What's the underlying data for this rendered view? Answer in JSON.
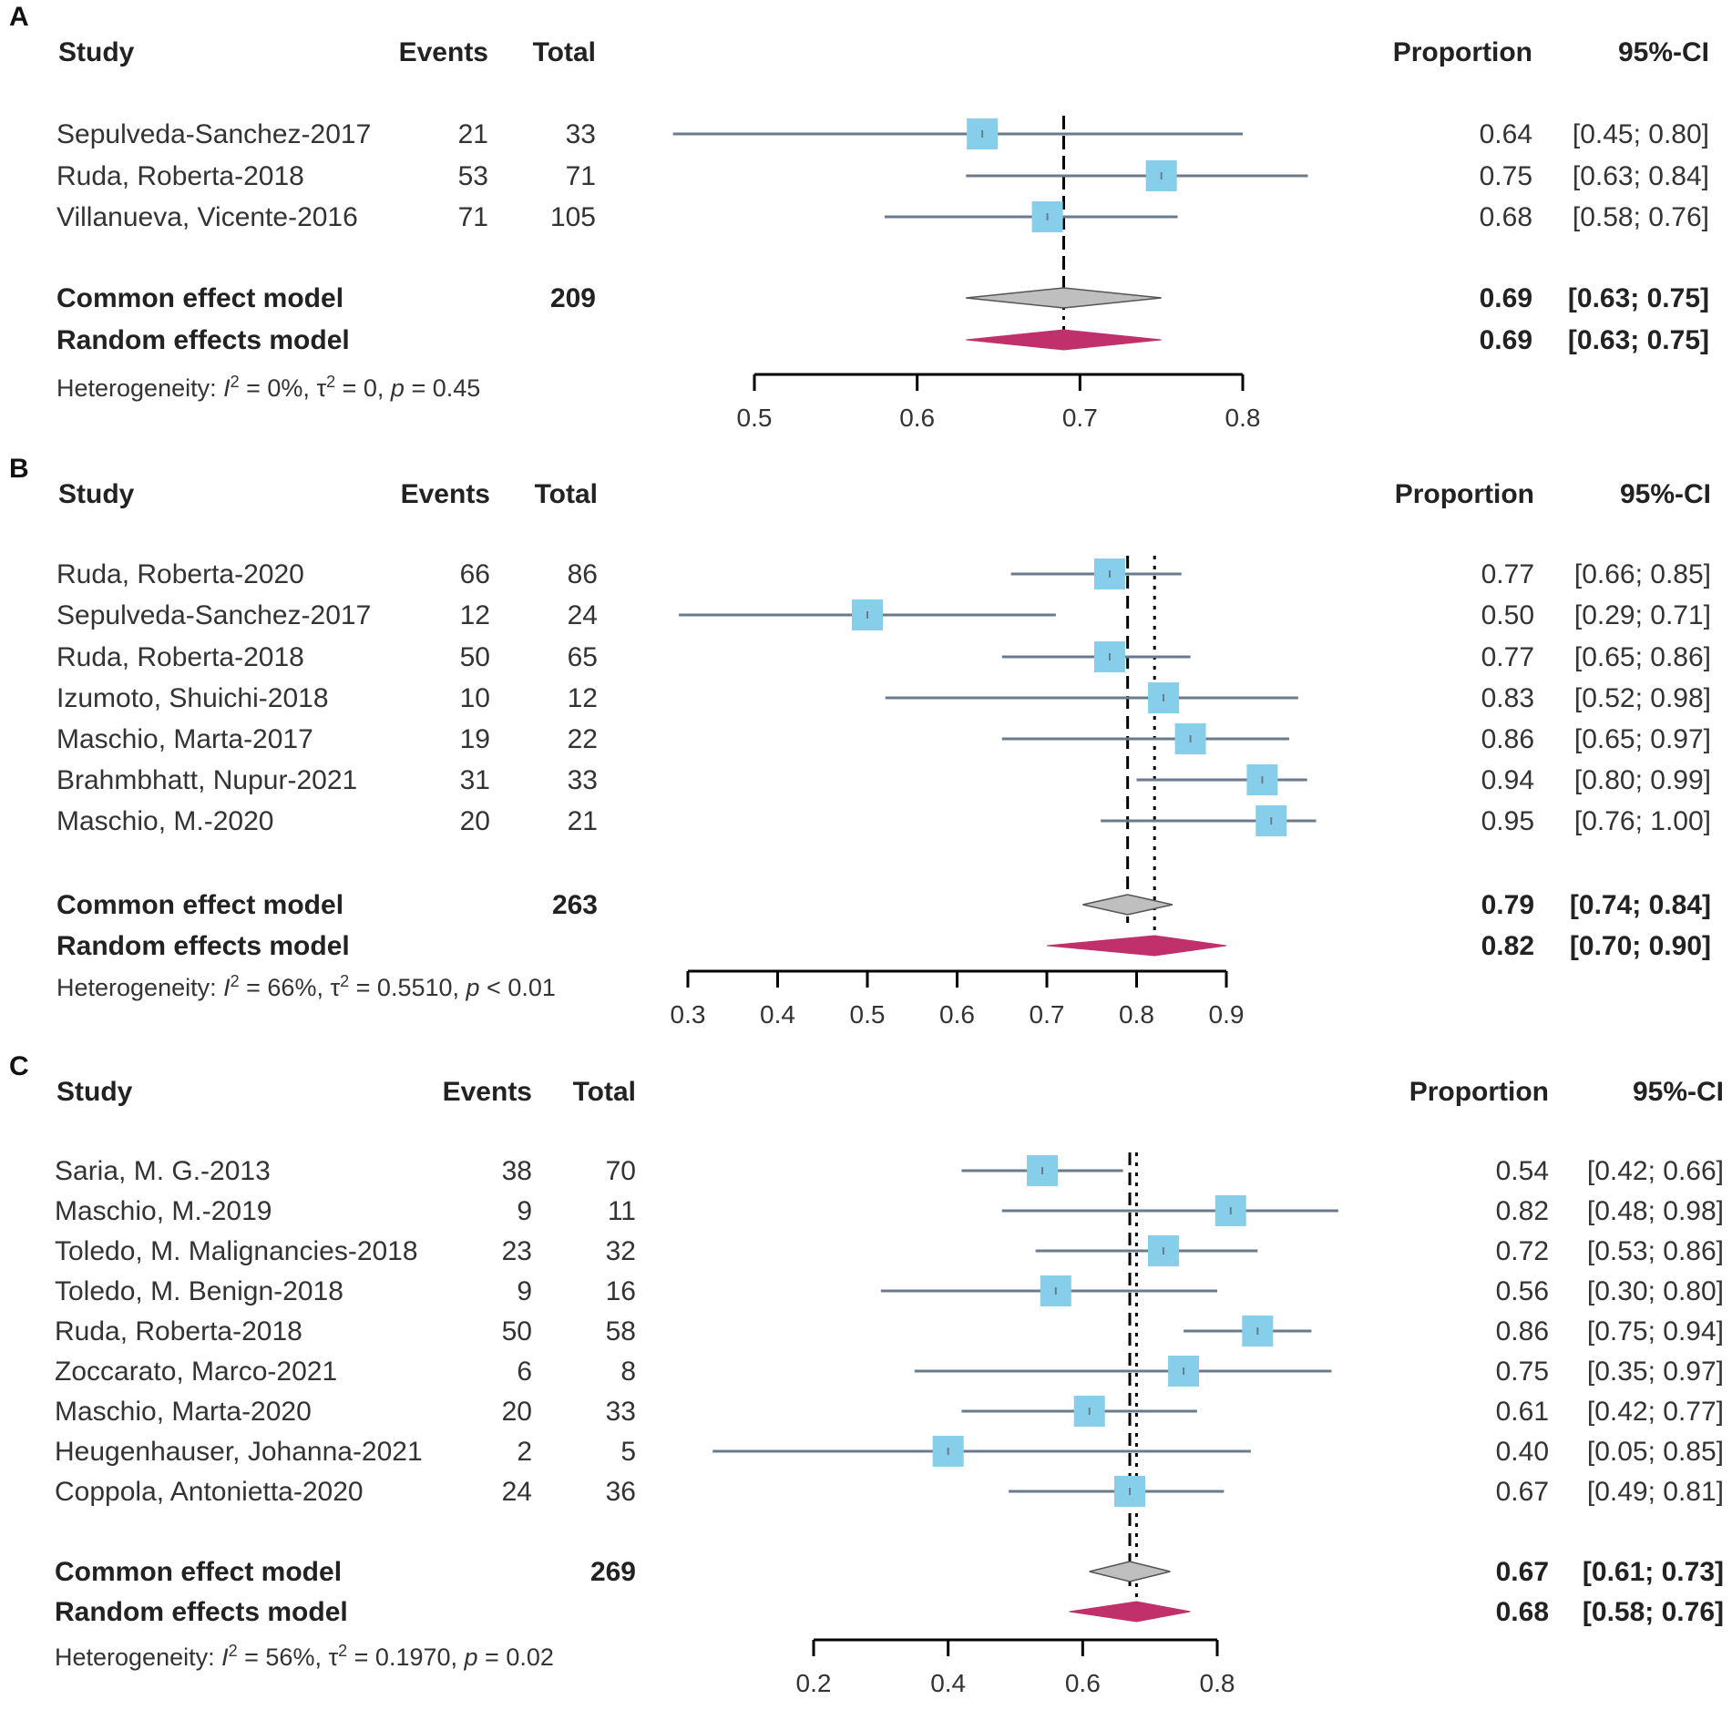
{
  "chart_data": [
    {
      "type": "forest",
      "panel_label": "A",
      "headers": {
        "study": "Study",
        "events": "Events",
        "total": "Total",
        "proportion": "Proportion",
        "ci": "95%-CI"
      },
      "studies": [
        {
          "name": "Sepulveda-Sanchez-2017",
          "events": "21",
          "total": "33",
          "proportion": "0.64",
          "ci": "[0.45; 0.80]",
          "est": 0.64,
          "lo": 0.45,
          "hi": 0.8,
          "weight": 1.0
        },
        {
          "name": "Ruda, Roberta-2018",
          "events": "53",
          "total": "71",
          "proportion": "0.75",
          "ci": "[0.63; 0.84]",
          "est": 0.75,
          "lo": 0.63,
          "hi": 0.84,
          "weight": 1.0
        },
        {
          "name": "Villanueva, Vicente-2016",
          "events": "71",
          "total": "105",
          "proportion": "0.68",
          "ci": "[0.58; 0.76]",
          "est": 0.68,
          "lo": 0.58,
          "hi": 0.76,
          "weight": 1.0
        }
      ],
      "common": {
        "label": "Common effect model",
        "total": "209",
        "proportion": "0.69",
        "ci": "[0.63; 0.75]",
        "est": 0.69,
        "lo": 0.63,
        "hi": 0.75
      },
      "random": {
        "label": "Random effects model",
        "total": "",
        "proportion": "0.69",
        "ci": "[0.63; 0.75]",
        "est": 0.69,
        "lo": 0.63,
        "hi": 0.75
      },
      "heterogeneity": {
        "prefix": "Heterogeneity: ",
        "i_sym": "I",
        "i_exp": "2",
        "i_rest": " = 0%, ",
        "t_sym": "τ",
        "t_exp": "2",
        "t_rest": " = 0, ",
        "p_sym": "p",
        "p_rest": " = 0.45"
      },
      "xlim": [
        0.5,
        0.8
      ],
      "ticks": [
        0.5,
        0.6,
        0.7,
        0.8
      ],
      "tick_labels": [
        "0.5",
        "0.6",
        "0.7",
        "0.8"
      ]
    },
    {
      "type": "forest",
      "panel_label": "B",
      "headers": {
        "study": "Study",
        "events": "Events",
        "total": "Total",
        "proportion": "Proportion",
        "ci": "95%-CI"
      },
      "studies": [
        {
          "name": "Ruda, Roberta-2020",
          "events": "66",
          "total": "86",
          "proportion": "0.77",
          "ci": "[0.66; 0.85]",
          "est": 0.77,
          "lo": 0.66,
          "hi": 0.85,
          "weight": 1.0
        },
        {
          "name": "Sepulveda-Sanchez-2017",
          "events": "12",
          "total": "24",
          "proportion": "0.50",
          "ci": "[0.29; 0.71]",
          "est": 0.5,
          "lo": 0.29,
          "hi": 0.71,
          "weight": 1.0
        },
        {
          "name": "Ruda, Roberta-2018",
          "events": "50",
          "total": "65",
          "proportion": "0.77",
          "ci": "[0.65; 0.86]",
          "est": 0.77,
          "lo": 0.65,
          "hi": 0.86,
          "weight": 1.0
        },
        {
          "name": "Izumoto, Shuichi-2018",
          "events": "10",
          "total": "12",
          "proportion": "0.83",
          "ci": "[0.52; 0.98]",
          "est": 0.83,
          "lo": 0.52,
          "hi": 0.98,
          "weight": 1.0
        },
        {
          "name": "Maschio, Marta-2017",
          "events": "19",
          "total": "22",
          "proportion": "0.86",
          "ci": "[0.65; 0.97]",
          "est": 0.86,
          "lo": 0.65,
          "hi": 0.97,
          "weight": 1.0
        },
        {
          "name": "Brahmbhatt, Nupur-2021",
          "events": "31",
          "total": "33",
          "proportion": "0.94",
          "ci": "[0.80; 0.99]",
          "est": 0.94,
          "lo": 0.8,
          "hi": 0.99,
          "weight": 1.0
        },
        {
          "name": "Maschio, M.-2020",
          "events": "20",
          "total": "21",
          "proportion": "0.95",
          "ci": "[0.76; 1.00]",
          "est": 0.95,
          "lo": 0.76,
          "hi": 1.0,
          "weight": 1.0
        }
      ],
      "common": {
        "label": "Common effect model",
        "total": "263",
        "proportion": "0.79",
        "ci": "[0.74; 0.84]",
        "est": 0.79,
        "lo": 0.74,
        "hi": 0.84
      },
      "random": {
        "label": "Random effects model",
        "total": "",
        "proportion": "0.82",
        "ci": "[0.70; 0.90]",
        "est": 0.82,
        "lo": 0.7,
        "hi": 0.9
      },
      "heterogeneity": {
        "prefix": "Heterogeneity: ",
        "i_sym": "I",
        "i_exp": "2",
        "i_rest": " = 66%, ",
        "t_sym": "τ",
        "t_exp": "2",
        "t_rest": " = 0.5510, ",
        "p_sym": "p",
        "p_rest": " < 0.01"
      },
      "xlim": [
        0.3,
        0.9
      ],
      "ticks": [
        0.3,
        0.4,
        0.5,
        0.6,
        0.7,
        0.8,
        0.9
      ],
      "tick_labels": [
        "0.3",
        "0.4",
        "0.5",
        "0.6",
        "0.7",
        "0.8",
        "0.9"
      ]
    },
    {
      "type": "forest",
      "panel_label": "C",
      "headers": {
        "study": "Study",
        "events": "Events",
        "total": "Total",
        "proportion": "Proportion",
        "ci": "95%-CI"
      },
      "studies": [
        {
          "name": "Saria, M. G.-2013",
          "events": "38",
          "total": "70",
          "proportion": "0.54",
          "ci": "[0.42; 0.66]",
          "est": 0.54,
          "lo": 0.42,
          "hi": 0.66,
          "weight": 1.0
        },
        {
          "name": "Maschio, M.-2019",
          "events": "9",
          "total": "11",
          "proportion": "0.82",
          "ci": "[0.48; 0.98]",
          "est": 0.82,
          "lo": 0.48,
          "hi": 0.98,
          "weight": 1.0
        },
        {
          "name": "Toledo, M. Malignancies-2018",
          "events": "23",
          "total": "32",
          "proportion": "0.72",
          "ci": "[0.53; 0.86]",
          "est": 0.72,
          "lo": 0.53,
          "hi": 0.86,
          "weight": 1.0
        },
        {
          "name": "Toledo, M. Benign-2018",
          "events": "9",
          "total": "16",
          "proportion": "0.56",
          "ci": "[0.30; 0.80]",
          "est": 0.56,
          "lo": 0.3,
          "hi": 0.8,
          "weight": 1.0
        },
        {
          "name": "Ruda, Roberta-2018",
          "events": "50",
          "total": "58",
          "proportion": "0.86",
          "ci": "[0.75; 0.94]",
          "est": 0.86,
          "lo": 0.75,
          "hi": 0.94,
          "weight": 1.0
        },
        {
          "name": "Zoccarato, Marco-2021",
          "events": "6",
          "total": "8",
          "proportion": "0.75",
          "ci": "[0.35; 0.97]",
          "est": 0.75,
          "lo": 0.35,
          "hi": 0.97,
          "weight": 1.0
        },
        {
          "name": "Maschio, Marta-2020",
          "events": "20",
          "total": "33",
          "proportion": "0.61",
          "ci": "[0.42; 0.77]",
          "est": 0.61,
          "lo": 0.42,
          "hi": 0.77,
          "weight": 1.0
        },
        {
          "name": "Heugenhauser, Johanna-2021",
          "events": "2",
          "total": "5",
          "proportion": "0.40",
          "ci": "[0.05; 0.85]",
          "est": 0.4,
          "lo": 0.05,
          "hi": 0.85,
          "weight": 1.0
        },
        {
          "name": "Coppola, Antonietta-2020",
          "events": "24",
          "total": "36",
          "proportion": "0.67",
          "ci": "[0.49; 0.81]",
          "est": 0.67,
          "lo": 0.49,
          "hi": 0.81,
          "weight": 1.0
        }
      ],
      "common": {
        "label": "Common effect model",
        "total": "269",
        "proportion": "0.67",
        "ci": "[0.61; 0.73]",
        "est": 0.67,
        "lo": 0.61,
        "hi": 0.73
      },
      "random": {
        "label": "Random effects model",
        "total": "",
        "proportion": "0.68",
        "ci": "[0.58; 0.76]",
        "est": 0.68,
        "lo": 0.58,
        "hi": 0.76
      },
      "heterogeneity": {
        "prefix": "Heterogeneity: ",
        "i_sym": "I",
        "i_exp": "2",
        "i_rest": " = 56%, ",
        "t_sym": "τ",
        "t_exp": "2",
        "t_rest": " = 0.1970, ",
        "p_sym": "p",
        "p_rest": " = 0.02"
      },
      "xlim": [
        0.2,
        0.8
      ],
      "ticks": [
        0.2,
        0.4,
        0.6,
        0.8
      ],
      "tick_labels": [
        "0.2",
        "0.4",
        "0.6",
        "0.8"
      ]
    }
  ],
  "colors": {
    "study_box": "#87ceeb",
    "ci_line": "#6b7b8c",
    "common_diamond": "#bfbfbf",
    "random_diamond": "#c0306a",
    "text": "#333333",
    "axis": "#000000"
  }
}
